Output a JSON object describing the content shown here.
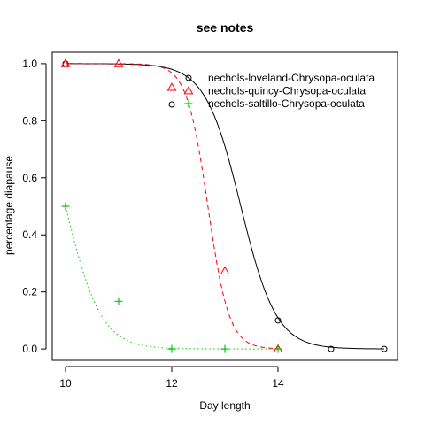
{
  "chart_data": {
    "type": "scatter",
    "title": "see notes",
    "xlabel": "Day length",
    "ylabel": "percentage diapause",
    "xlim": [
      9.75,
      16.25
    ],
    "ylim": [
      -0.04,
      1.04
    ],
    "xticks": [
      10,
      12,
      14
    ],
    "xtick_labels": [
      "10",
      "12",
      "14"
    ],
    "yticks": [
      0.0,
      0.2,
      0.4,
      0.6,
      0.8,
      1.0
    ],
    "ytick_labels": [
      "0.0",
      "0.2",
      "0.4",
      "0.6",
      "0.8",
      "1.0"
    ],
    "grid": false,
    "legend_position": "top-right",
    "series": [
      {
        "name": "nechols-loveland-Chrysopa-oculata",
        "color": "#000000",
        "marker": "circle",
        "line_style": "solid",
        "x": [
          10,
          12,
          14,
          15,
          16
        ],
        "y": [
          1.0,
          0.857,
          0.1,
          0.0,
          0.0
        ],
        "fit": {
          "x50": 13.3,
          "slope": 3.0
        }
      },
      {
        "name": "nechols-quincy-Chrysopa-oculata",
        "color": "#ff0000",
        "marker": "triangle",
        "line_style": "dashed",
        "x": [
          10,
          11,
          12,
          13,
          14
        ],
        "y": [
          1.0,
          1.0,
          0.917,
          0.273,
          0.0
        ],
        "fit": {
          "x50": 12.68,
          "slope": 5.0
        }
      },
      {
        "name": "nechols-saltillo-Chrysopa-oculata",
        "color": "#00cc00",
        "marker": "plus",
        "line_style": "dotted",
        "x": [
          10,
          11,
          12,
          13,
          14
        ],
        "y": [
          0.5,
          0.167,
          0.0,
          0.0,
          0.0
        ],
        "fit": {
          "x50": 10.0,
          "slope": 3.0
        }
      }
    ]
  }
}
